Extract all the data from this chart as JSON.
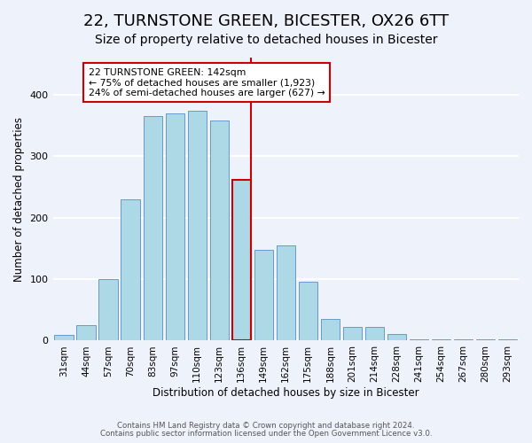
{
  "title": "22, TURNSTONE GREEN, BICESTER, OX26 6TT",
  "subtitle": "Size of property relative to detached houses in Bicester",
  "xlabel": "Distribution of detached houses by size in Bicester",
  "ylabel": "Number of detached properties",
  "bar_labels": [
    "31sqm",
    "44sqm",
    "57sqm",
    "70sqm",
    "83sqm",
    "97sqm",
    "110sqm",
    "123sqm",
    "136sqm",
    "149sqm",
    "162sqm",
    "175sqm",
    "188sqm",
    "201sqm",
    "214sqm",
    "228sqm",
    "241sqm",
    "254sqm",
    "267sqm",
    "280sqm",
    "293sqm"
  ],
  "bar_values": [
    10,
    25,
    100,
    230,
    365,
    370,
    373,
    358,
    262,
    148,
    155,
    96,
    35,
    22,
    22,
    11,
    2,
    2,
    2,
    2,
    2
  ],
  "bar_color": "#add8e6",
  "bar_edge_color": "#6699cc",
  "highlight_bar_index": 8,
  "highlight_edge_color": "#cc0000",
  "vline_x": 8,
  "vline_color": "#cc0000",
  "annotation_title": "22 TURNSTONE GREEN: 142sqm",
  "annotation_line1": "← 75% of detached houses are smaller (1,923)",
  "annotation_line2": "24% of semi-detached houses are larger (627) →",
  "annotation_box_edgecolor": "#cc0000",
  "ylim": [
    0,
    460
  ],
  "footnote1": "Contains HM Land Registry data © Crown copyright and database right 2024.",
  "footnote2": "Contains public sector information licensed under the Open Government Licence v3.0.",
  "background_color": "#eef2fb",
  "grid_color": "#ffffff",
  "title_fontsize": 13,
  "subtitle_fontsize": 10,
  "tick_fontsize": 7.5
}
